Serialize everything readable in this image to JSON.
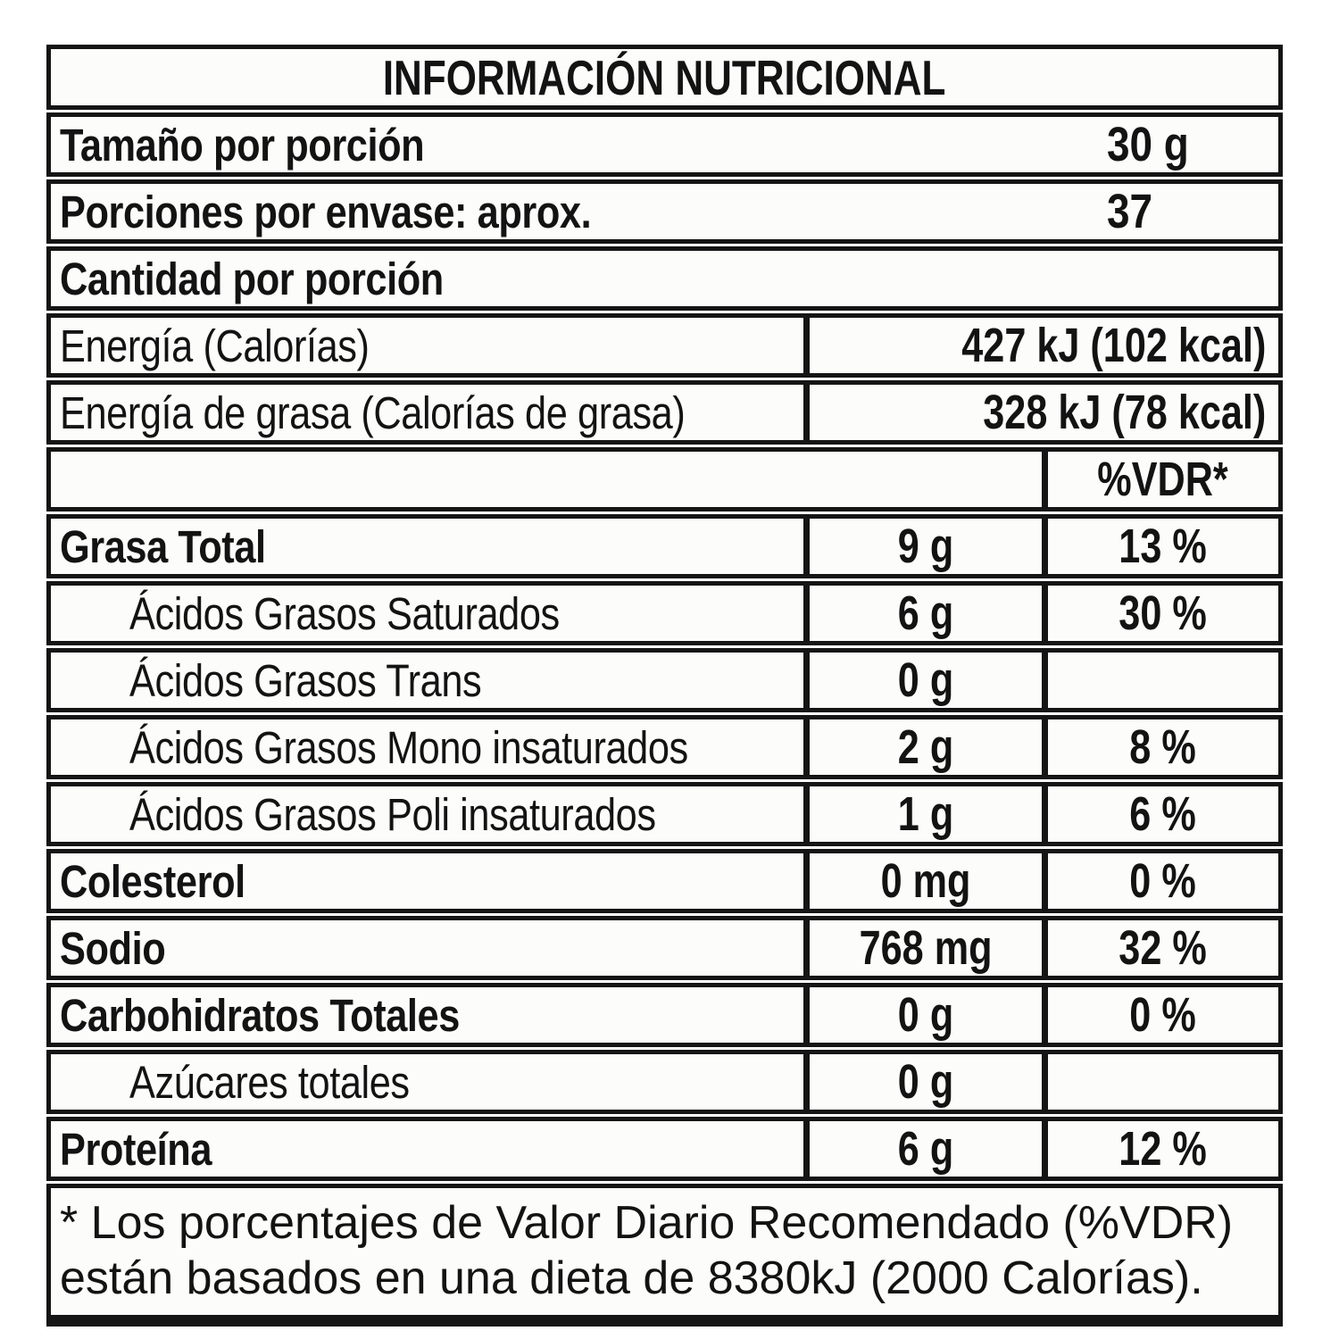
{
  "title": "INFORMACIÓN NUTRICIONAL",
  "serving_rows": [
    {
      "name": "Tamaño por porción",
      "value": "30 g"
    },
    {
      "name": "Porciones por envase: aprox.",
      "value": "37"
    }
  ],
  "amount_per_serving": "Cantidad por porción",
  "energy_rows": [
    {
      "name": "Energía (Calorías)",
      "value": "427 kJ (102 kcal)"
    },
    {
      "name": "Energía de grasa (Calorías de grasa)",
      "value": "328 kJ (78 kcal)"
    }
  ],
  "vdr_header": "%VDR*",
  "nutrient_rows": [
    {
      "name": "Grasa Total",
      "amount": "9 g",
      "vdr": "13 %"
    },
    {
      "name": "Ácidos Grasos Saturados",
      "amount": "6 g",
      "vdr": "30 %"
    },
    {
      "name": "Ácidos Grasos Trans",
      "amount": "0 g",
      "vdr": ""
    },
    {
      "name": "Ácidos Grasos Mono insaturados",
      "amount": "2 g",
      "vdr": "8 %"
    },
    {
      "name": "Ácidos Grasos Poli insaturados",
      "amount": "1 g",
      "vdr": "6 %"
    },
    {
      "name": "Colesterol",
      "amount": "0 mg",
      "vdr": "0 %"
    },
    {
      "name": "Sodio",
      "amount": "768 mg",
      "vdr": "32 %"
    },
    {
      "name": "Carbohidratos Totales",
      "amount": "0 g",
      "vdr": "0 %"
    },
    {
      "name": "Azúcares totales",
      "amount": "0 g",
      "vdr": ""
    },
    {
      "name": "Proteína",
      "amount": "6 g",
      "vdr": "12 %"
    }
  ],
  "footnote": {
    "line1": "* Los porcentajes de Valor Diario Recomendado (%VDR)",
    "line2": "están basados en una dieta de 8380kJ (2000 Calorías)."
  },
  "colors": {
    "border": "#151515",
    "text": "#131313",
    "paper": "#fcfcfb"
  }
}
